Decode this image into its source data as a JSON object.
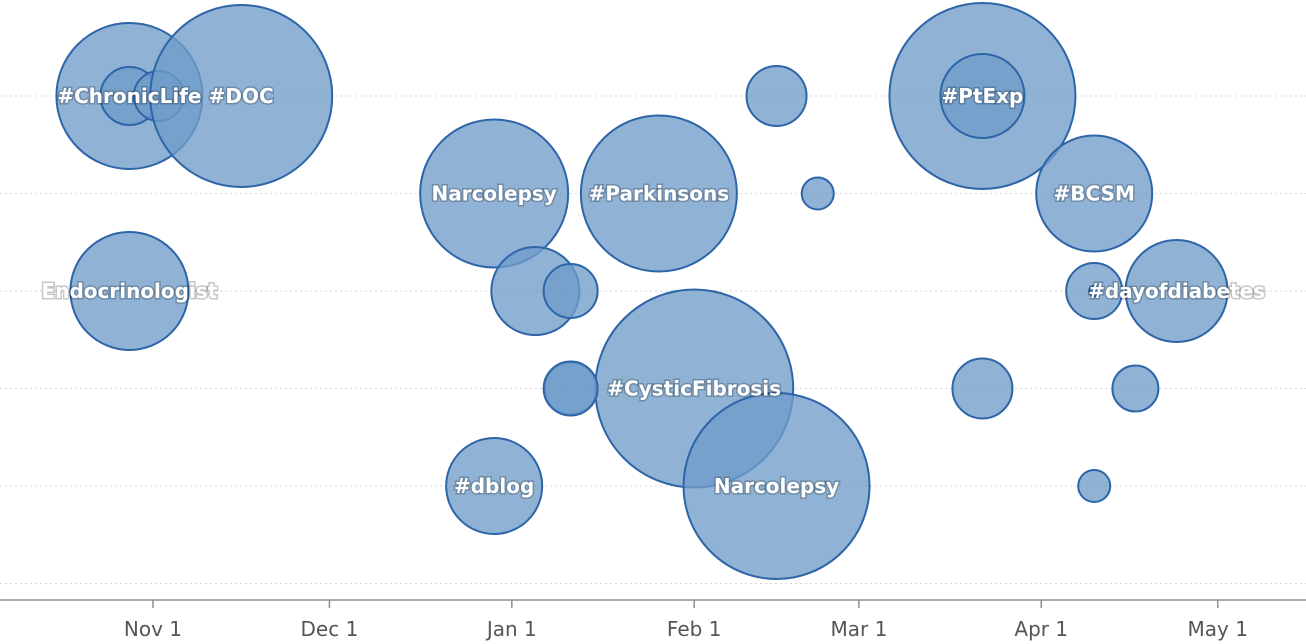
{
  "chart_data": {
    "type": "scatter",
    "x_type": "date",
    "xlim": [
      "2013-10-06",
      "2014-05-16"
    ],
    "row_count": 6,
    "x_ticks": [
      {
        "date": "2013-11-01",
        "label": "Nov 1"
      },
      {
        "date": "2013-12-01",
        "label": "Dec 1"
      },
      {
        "date": "2014-01-01",
        "label": "Jan 1"
      },
      {
        "date": "2014-02-01",
        "label": "Feb 1"
      },
      {
        "date": "2014-03-01",
        "label": "Mar 1"
      },
      {
        "date": "2014-04-01",
        "label": "Apr 1"
      },
      {
        "date": "2014-05-01",
        "label": "May 1"
      }
    ],
    "colors": {
      "bubble_fill": "#6f9cc9",
      "bubble_stroke": "#2d65a8",
      "grid": "#d7d7d7",
      "axis": "#8f8f8f",
      "tick_text": "#555555"
    },
    "points": [
      {
        "date": "2013-10-28",
        "row": 1,
        "size": 73,
        "label": "#ChronicLife"
      },
      {
        "date": "2013-10-28",
        "row": 1,
        "size": 29,
        "label": ""
      },
      {
        "date": "2013-11-02",
        "row": 1,
        "size": 25,
        "label": ""
      },
      {
        "date": "2013-11-16",
        "row": 1,
        "size": 91,
        "label": "#DOC"
      },
      {
        "date": "2013-10-28",
        "row": 3,
        "size": 59,
        "label": "Endocrinologist"
      },
      {
        "date": "2013-12-29",
        "row": 2,
        "size": 74,
        "label": "Narcolepsy"
      },
      {
        "date": "2014-01-05",
        "row": 3,
        "size": 44,
        "label": ""
      },
      {
        "date": "2014-01-11",
        "row": 3,
        "size": 27,
        "label": ""
      },
      {
        "date": "2014-01-11",
        "row": 4,
        "size": 26,
        "label": ""
      },
      {
        "date": "2013-12-29",
        "row": 5,
        "size": 48,
        "label": "#dblog"
      },
      {
        "date": "2014-01-26",
        "row": 2,
        "size": 78,
        "label": "#Parkinsons"
      },
      {
        "date": "2014-02-01",
        "row": 4,
        "size": 99,
        "label": "#CysticFibrosis"
      },
      {
        "date": "2014-02-15",
        "row": 5,
        "size": 93,
        "label": "Narcolepsy"
      },
      {
        "date": "2014-02-15",
        "row": 1,
        "size": 30,
        "label": ""
      },
      {
        "date": "2014-02-22",
        "row": 2,
        "size": 16,
        "label": ""
      },
      {
        "date": "2014-03-22",
        "row": 1,
        "size": 93,
        "label": "#PtExp"
      },
      {
        "date": "2014-03-22",
        "row": 1,
        "size": 42,
        "label": ""
      },
      {
        "date": "2014-04-10",
        "row": 2,
        "size": 58,
        "label": "#BCSM"
      },
      {
        "date": "2014-04-10",
        "row": 3,
        "size": 28,
        "label": ""
      },
      {
        "date": "2014-04-10",
        "row": 3,
        "size": 5,
        "label": ""
      },
      {
        "date": "2014-04-24",
        "row": 3,
        "size": 51,
        "label": "#dayofdiabetes"
      },
      {
        "date": "2014-03-22",
        "row": 4,
        "size": 30,
        "label": ""
      },
      {
        "date": "2014-04-17",
        "row": 4,
        "size": 23,
        "label": ""
      },
      {
        "date": "2014-04-10",
        "row": 5,
        "size": 16,
        "label": ""
      },
      {
        "date": "2014-01-11",
        "row": 4,
        "size": 27,
        "label": ""
      }
    ]
  }
}
